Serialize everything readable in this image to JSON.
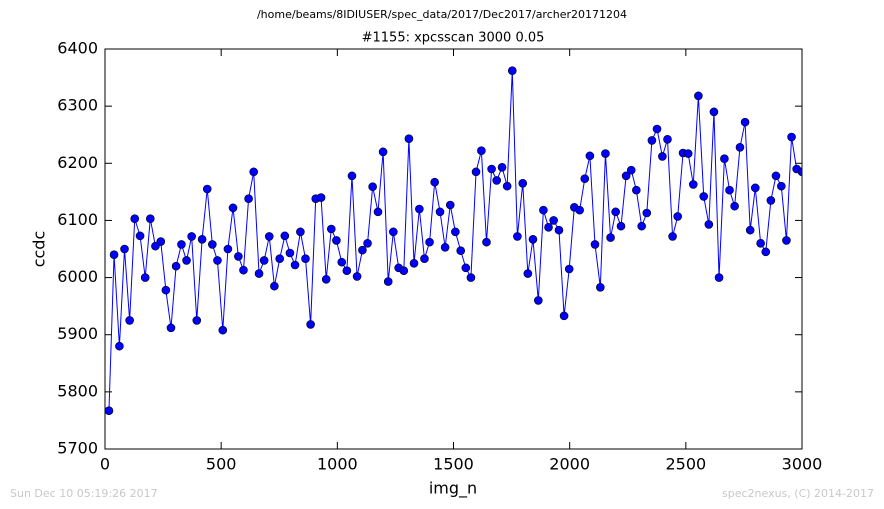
{
  "chart_data": {
    "type": "line",
    "suptitle": "/home/beams/8IDIUSER/spec_data/2017/Dec2017/archer20171204",
    "title": "#1155: xpcsscan 3000 0.05",
    "xlabel": "img_n",
    "ylabel": "ccdc",
    "x": [
      17,
      39,
      62,
      84,
      106,
      128,
      151,
      173,
      195,
      217,
      240,
      262,
      284,
      306,
      329,
      351,
      373,
      395,
      418,
      440,
      462,
      484,
      507,
      529,
      551,
      574,
      596,
      618,
      640,
      663,
      685,
      707,
      729,
      752,
      774,
      796,
      818,
      841,
      863,
      885,
      907,
      930,
      952,
      974,
      996,
      1019,
      1041,
      1063,
      1085,
      1108,
      1130,
      1152,
      1175,
      1197,
      1219,
      1241,
      1264,
      1286,
      1308,
      1330,
      1353,
      1375,
      1397,
      1419,
      1442,
      1464,
      1486,
      1508,
      1531,
      1553,
      1575,
      1597,
      1620,
      1642,
      1664,
      1686,
      1709,
      1731,
      1753,
      1775,
      1798,
      1820,
      1842,
      1865,
      1887,
      1909,
      1931,
      1954,
      1976,
      1998,
      2020,
      2043,
      2065,
      2087,
      2109,
      2132,
      2154,
      2176,
      2198,
      2221,
      2243,
      2265,
      2287,
      2310,
      2332,
      2354,
      2376,
      2399,
      2421,
      2443,
      2465,
      2488,
      2510,
      2532,
      2554,
      2577,
      2599,
      2621,
      2643,
      2666,
      2688,
      2710,
      2733,
      2755,
      2777,
      2799,
      2822,
      2844,
      2866,
      2888,
      2911,
      2933,
      2955,
      2977,
      3000
    ],
    "series": [
      {
        "color": "#0000ff",
        "values": [
          5767,
          6040,
          5880,
          6050,
          5925,
          6103,
          6073,
          6000,
          6103,
          6055,
          6063,
          5978,
          5912,
          6020,
          6058,
          6030,
          6072,
          5925,
          6067,
          6155,
          6058,
          6030,
          5908,
          6050,
          6122,
          6037,
          6013,
          6138,
          6185,
          6007,
          6030,
          6072,
          5985,
          6033,
          6073,
          6043,
          6022,
          6080,
          6033,
          5918,
          6138,
          6140,
          5997,
          6085,
          6065,
          6027,
          6012,
          6178,
          6002,
          6048,
          6060,
          6159,
          6115,
          6220,
          5993,
          6080,
          6017,
          6012,
          6243,
          6025,
          6120,
          6033,
          6062,
          6167,
          6115,
          6053,
          6127,
          6080,
          6047,
          6017,
          6000,
          6185,
          6222,
          6062,
          6190,
          6170,
          6193,
          6160,
          6362,
          6072,
          6165,
          6007,
          6067,
          5960,
          6118,
          6088,
          6100,
          6083,
          5933,
          6015,
          6123,
          6118,
          6173,
          6213,
          6058,
          5983,
          6217,
          6070,
          6115,
          6090,
          6178,
          6188,
          6153,
          6090,
          6113,
          6240,
          6260,
          6212,
          6242,
          6072,
          6107,
          6218,
          6217,
          6163,
          6318,
          6142,
          6093,
          6290,
          6000,
          6208,
          6153,
          6125,
          6228,
          6272,
          6083,
          6157,
          6060,
          6045,
          6135,
          6178,
          6160,
          6065,
          6246,
          6190,
          6185
        ]
      }
    ],
    "xlim": [
      0,
      3000
    ],
    "xticks": [
      0,
      500,
      1000,
      1500,
      2000,
      2500,
      3000
    ],
    "ylim": [
      5700,
      6400
    ],
    "yticks": [
      5700,
      5800,
      5900,
      6000,
      6100,
      6200,
      6300,
      6400
    ],
    "markers": true,
    "grid": false
  },
  "footer": {
    "left": "Sun Dec 10 05:19:26 2017",
    "right": "spec2nexus, (C) 2014-2017"
  }
}
